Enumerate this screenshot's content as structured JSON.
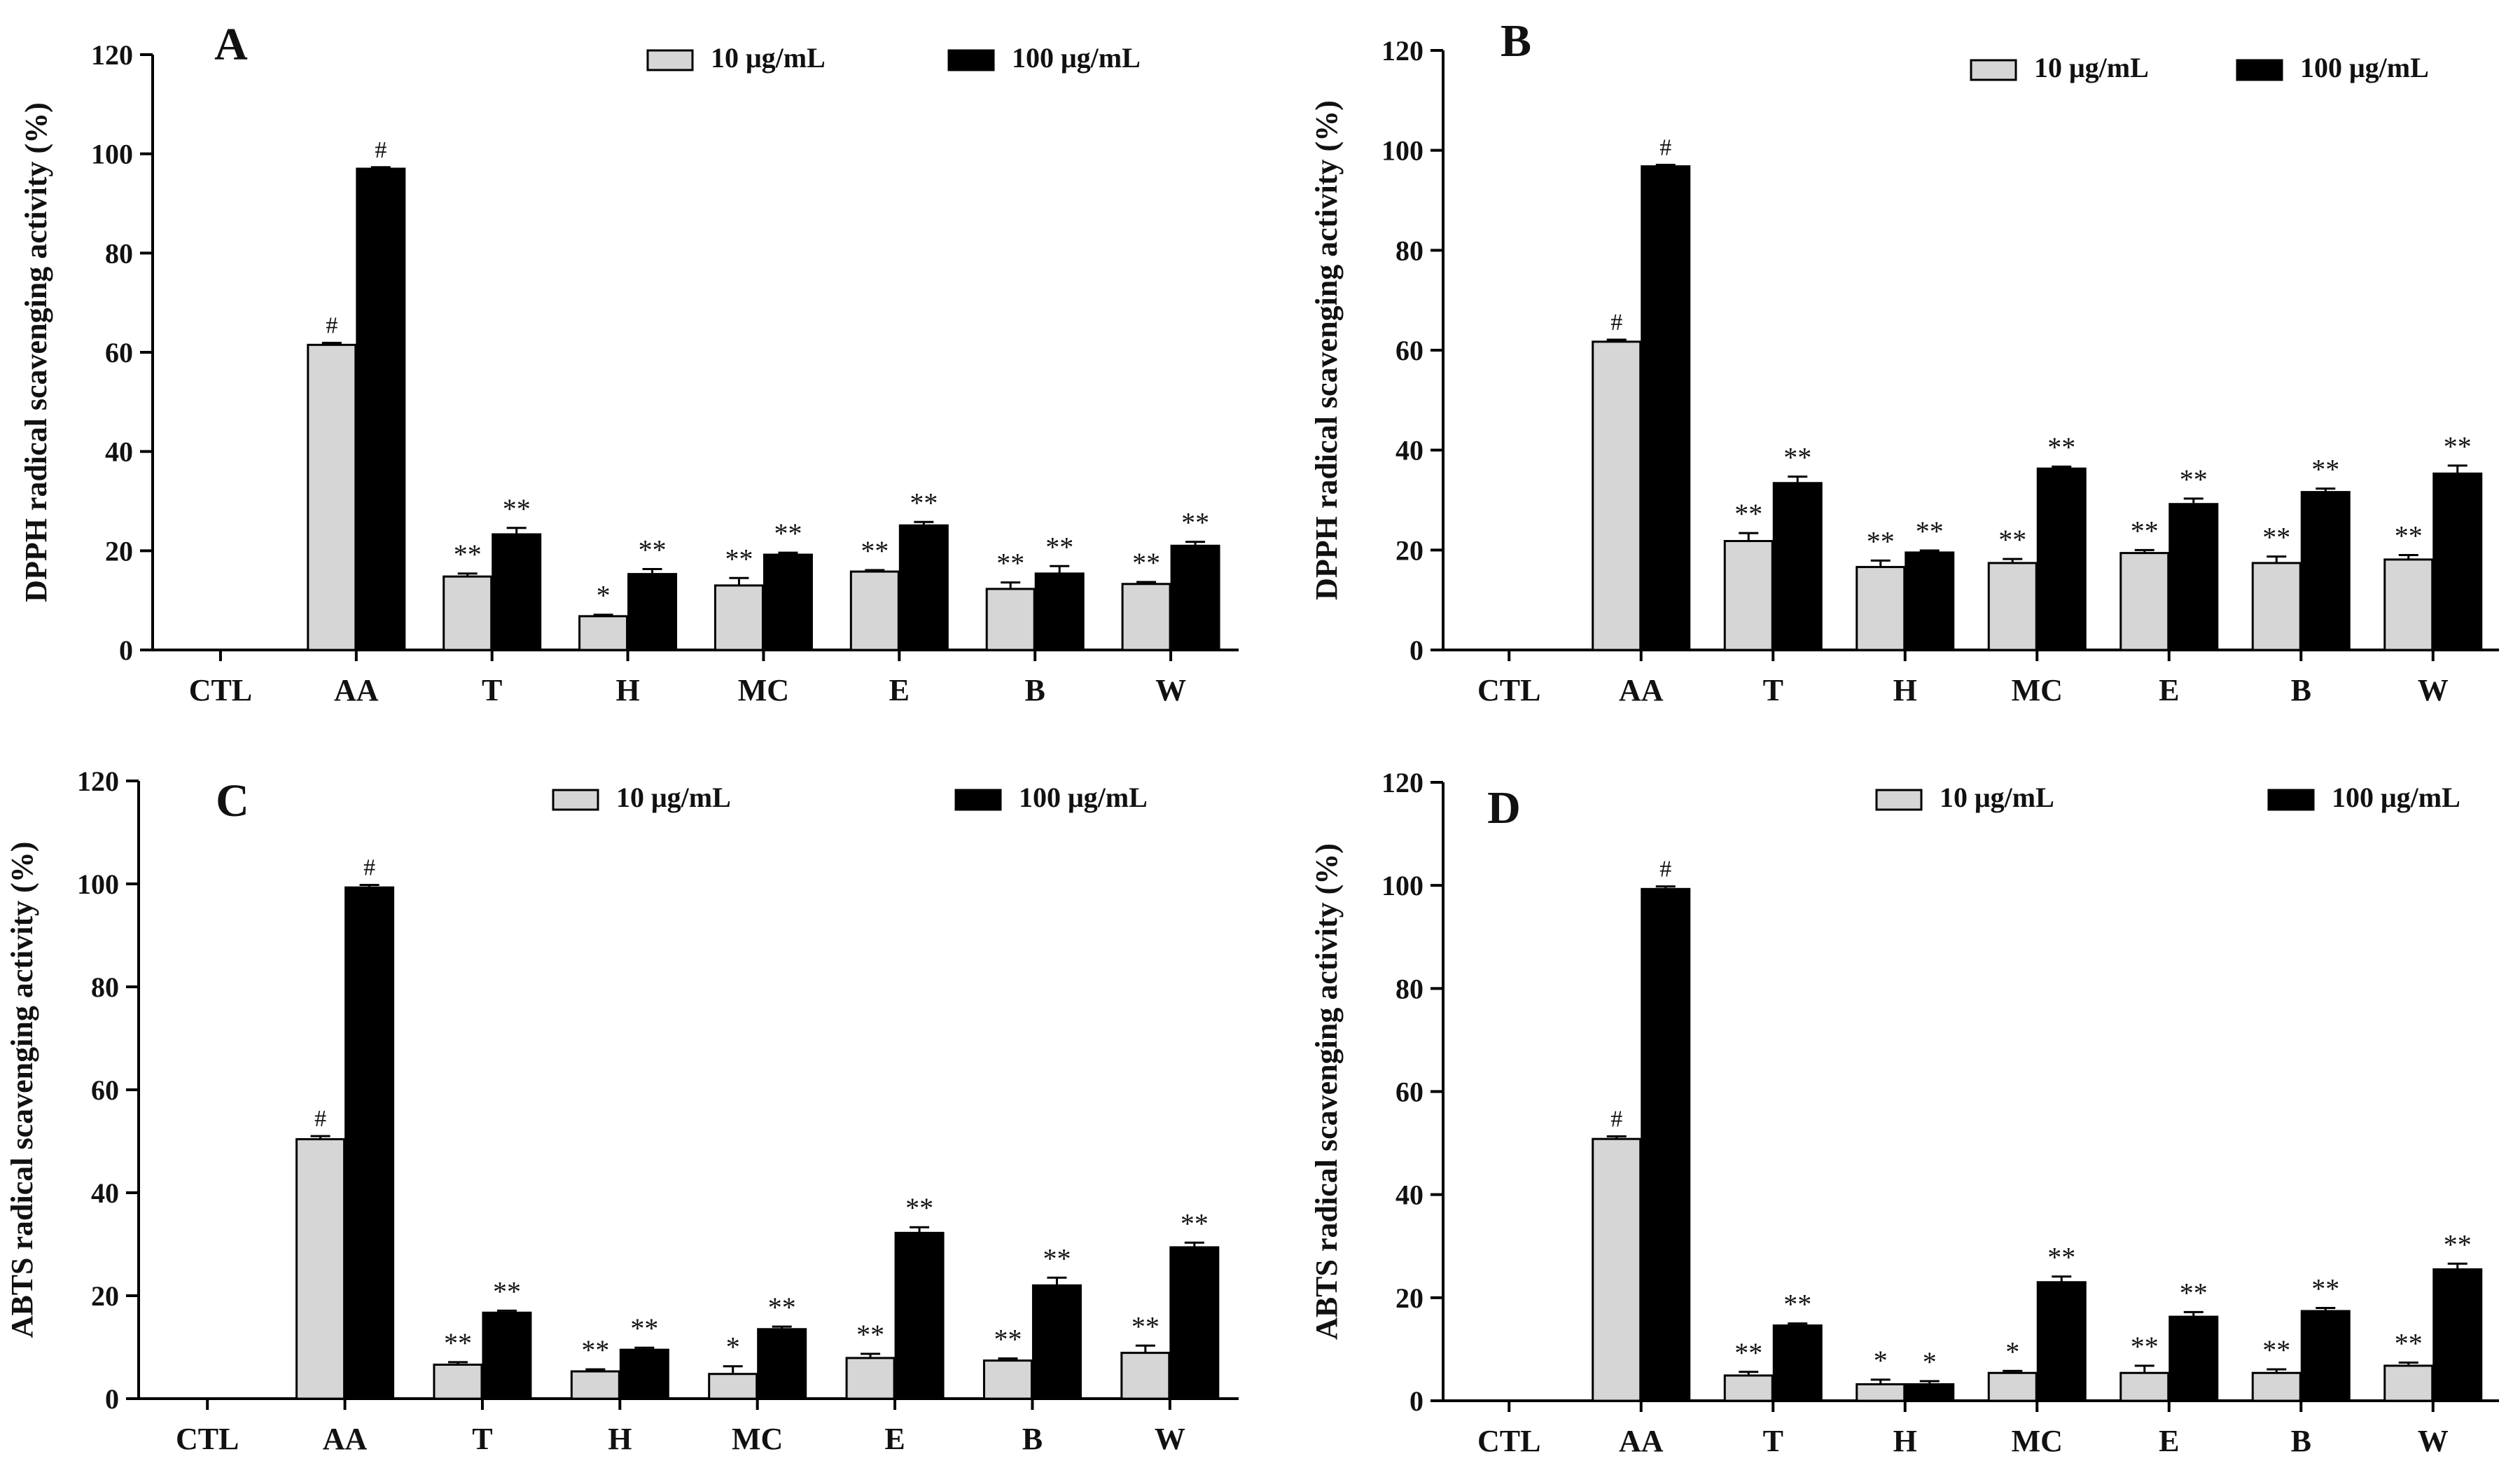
{
  "legend": {
    "low": "10 μg/mL",
    "high": "100 μg/mL"
  },
  "colors": {
    "low": "#d6d6d6",
    "high": "#000000",
    "axis": "#000000"
  },
  "chart_data": [
    {
      "panel": "A",
      "type": "bar",
      "ylabel": "DPPH radical scavenging activity (%)",
      "xlabel": "",
      "ylim": [
        0,
        120
      ],
      "yticks": [
        0,
        20,
        40,
        60,
        80,
        100,
        120
      ],
      "categories": [
        "CTL",
        "AA",
        "T",
        "H",
        "MC",
        "E",
        "B",
        "W"
      ],
      "series": [
        {
          "name": "10 μg/mL",
          "values": [
            0,
            61.5,
            14.8,
            6.8,
            13.0,
            15.8,
            12.3,
            13.3
          ],
          "errors": [
            0,
            0.4,
            0.6,
            0.3,
            1.5,
            0.3,
            1.3,
            0.4
          ],
          "labels": [
            "",
            "#",
            "**",
            "*",
            "**",
            "**",
            "**",
            "**"
          ]
        },
        {
          "name": "100 μg/mL",
          "values": [
            0,
            97.0,
            23.3,
            15.3,
            19.2,
            25.1,
            15.4,
            21.0
          ],
          "errors": [
            0,
            0.3,
            1.3,
            1.0,
            0.4,
            0.7,
            1.5,
            0.8
          ],
          "labels": [
            "",
            "#",
            "**",
            "**",
            "**",
            "**",
            "**",
            "**"
          ]
        }
      ]
    },
    {
      "panel": "B",
      "type": "bar",
      "ylabel": "DPPH radical scavenging activity (%)",
      "xlabel": "",
      "ylim": [
        0,
        120
      ],
      "yticks": [
        0,
        20,
        40,
        60,
        80,
        100,
        120
      ],
      "categories": [
        "CTL",
        "AA",
        "T",
        "H",
        "MC",
        "E",
        "B",
        "W"
      ],
      "series": [
        {
          "name": "10 μg/mL",
          "values": [
            0,
            61.7,
            21.8,
            16.6,
            17.4,
            19.4,
            17.4,
            18.1
          ],
          "errors": [
            0,
            0.4,
            1.6,
            1.3,
            0.8,
            0.6,
            1.3,
            0.9
          ],
          "labels": [
            "",
            "#",
            "**",
            "**",
            "**",
            "**",
            "**",
            "**"
          ]
        },
        {
          "name": "100 μg/mL",
          "values": [
            0,
            96.8,
            33.4,
            19.5,
            36.3,
            29.2,
            31.6,
            35.3
          ],
          "errors": [
            0,
            0.3,
            1.3,
            0.4,
            0.4,
            1.1,
            0.7,
            1.6
          ],
          "labels": [
            "",
            "#",
            "**",
            "**",
            "**",
            "**",
            "**",
            "**"
          ]
        }
      ]
    },
    {
      "panel": "C",
      "type": "bar",
      "ylabel": "ABTS radical scavenging activity (%)",
      "xlabel": "",
      "ylim": [
        0,
        120
      ],
      "yticks": [
        0,
        20,
        40,
        60,
        80,
        100,
        120
      ],
      "categories": [
        "CTL",
        "AA",
        "T",
        "H",
        "MC",
        "E",
        "B",
        "W"
      ],
      "series": [
        {
          "name": "10 μg/mL",
          "values": [
            0,
            50.4,
            6.6,
            5.3,
            4.8,
            7.9,
            7.4,
            8.9
          ],
          "errors": [
            0,
            0.6,
            0.5,
            0.4,
            1.5,
            0.8,
            0.4,
            1.4
          ],
          "labels": [
            "",
            "#",
            "**",
            "**",
            "*",
            "**",
            "**",
            "**"
          ]
        },
        {
          "name": "100 μg/mL",
          "values": [
            0,
            99.3,
            16.7,
            9.5,
            13.5,
            32.2,
            22.0,
            29.4
          ],
          "errors": [
            0,
            0.5,
            0.4,
            0.4,
            0.5,
            1.1,
            1.5,
            0.9
          ],
          "labels": [
            "",
            "#",
            "**",
            "**",
            "**",
            "**",
            "**",
            "**"
          ]
        }
      ]
    },
    {
      "panel": "D",
      "type": "bar",
      "ylabel": "ABTS radical scavenging activity (%)",
      "xlabel": "",
      "ylim": [
        0,
        120
      ],
      "yticks": [
        0,
        20,
        40,
        60,
        80,
        100,
        120
      ],
      "categories": [
        "CTL",
        "AA",
        "T",
        "H",
        "MC",
        "E",
        "B",
        "W"
      ],
      "series": [
        {
          "name": "10 μg/mL",
          "values": [
            0,
            50.8,
            4.9,
            3.2,
            5.4,
            5.4,
            5.4,
            6.8
          ],
          "errors": [
            0,
            0.5,
            0.7,
            0.9,
            0.4,
            1.4,
            0.7,
            0.6
          ],
          "labels": [
            "",
            "#",
            "**",
            "*",
            "*",
            "**",
            "**",
            "**"
          ]
        },
        {
          "name": "100 μg/mL",
          "values": [
            0,
            99.3,
            14.6,
            3.2,
            23.0,
            16.3,
            17.4,
            25.5
          ],
          "errors": [
            0,
            0.5,
            0.4,
            0.6,
            1.1,
            0.9,
            0.6,
            1.1
          ],
          "labels": [
            "",
            "#",
            "**",
            "*",
            "**",
            "**",
            "**",
            "**"
          ]
        }
      ]
    }
  ]
}
